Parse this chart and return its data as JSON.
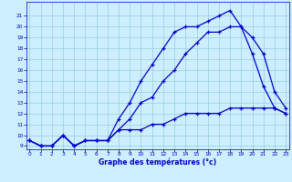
{
  "xlabel": "Graphe des températures (°c)",
  "bg_color": "#cceeff",
  "grid_color": "#99ccdd",
  "line_color": "#0000cc",
  "x": [
    0,
    1,
    2,
    3,
    4,
    5,
    6,
    7,
    8,
    9,
    10,
    11,
    12,
    13,
    14,
    15,
    16,
    17,
    18,
    19,
    20,
    21,
    22,
    23
  ],
  "y_min": [
    9.5,
    9.0,
    9.0,
    10.0,
    9.0,
    9.5,
    9.5,
    9.5,
    10.5,
    10.5,
    10.5,
    11.0,
    11.0,
    11.5,
    12.0,
    12.0,
    12.0,
    12.0,
    12.5,
    12.5,
    12.5,
    12.5,
    12.5,
    12.0
  ],
  "y_max": [
    9.5,
    9.0,
    9.0,
    10.0,
    9.0,
    9.5,
    9.5,
    9.5,
    11.5,
    13.0,
    15.0,
    16.5,
    18.0,
    19.5,
    20.0,
    20.0,
    20.5,
    21.0,
    21.5,
    20.0,
    19.0,
    17.5,
    14.0,
    12.5
  ],
  "y_mid": [
    9.5,
    9.0,
    9.0,
    10.0,
    9.0,
    9.5,
    9.5,
    9.5,
    10.5,
    11.5,
    13.0,
    13.5,
    15.0,
    16.0,
    17.5,
    18.5,
    19.5,
    19.5,
    20.0,
    20.0,
    17.5,
    14.5,
    12.5,
    12.0
  ],
  "ylim_min": 9,
  "ylim_max": 22,
  "xlim_min": 0,
  "xlim_max": 23,
  "yticks": [
    9,
    10,
    11,
    12,
    13,
    14,
    15,
    16,
    17,
    18,
    19,
    20,
    21
  ],
  "xticks": [
    0,
    1,
    2,
    3,
    4,
    5,
    6,
    7,
    8,
    9,
    10,
    11,
    12,
    13,
    14,
    15,
    16,
    17,
    18,
    19,
    20,
    21,
    22,
    23
  ],
  "tick_fontsize": 4.2,
  "xlabel_fontsize": 5.5,
  "marker_size": 2.5,
  "line_width": 0.9
}
